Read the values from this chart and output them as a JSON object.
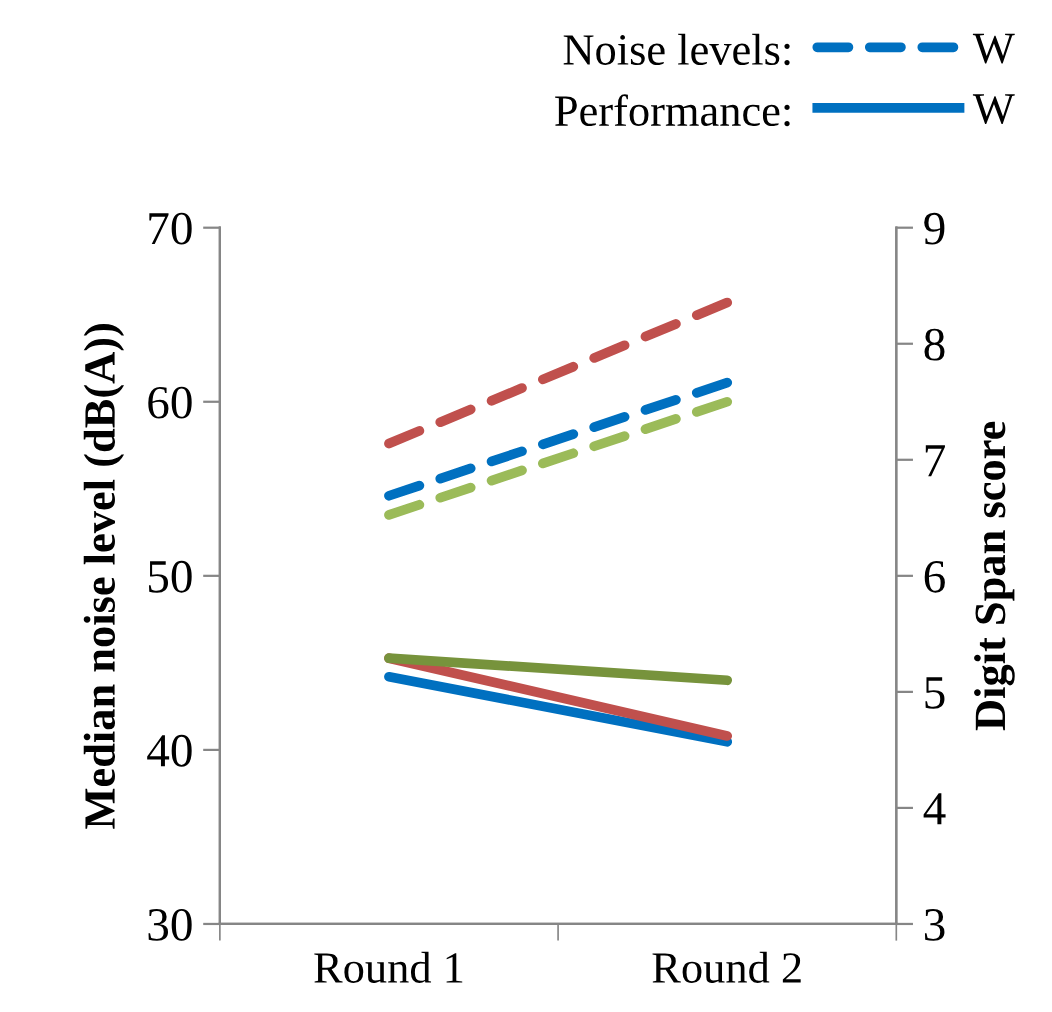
{
  "chart_data": {
    "type": "line",
    "categories": [
      "Round 1",
      "Round 2"
    ],
    "ylabel": "Median noise level (dB(A))",
    "y2label": "Digit Span score",
    "ylim": [
      30,
      70
    ],
    "yticks": [
      30,
      40,
      50,
      60,
      70
    ],
    "y2lim": [
      3,
      9
    ],
    "y2ticks": [
      3,
      4,
      5,
      6,
      7,
      8,
      9
    ],
    "annotations": [
      "Noise levels:",
      "Performance:"
    ],
    "legend": "top right",
    "grid": false,
    "series": [
      {
        "name": "W",
        "color": "#0070c0",
        "values": [
          54.6,
          61.1
        ],
        "line_style": "dashed",
        "axis": "y"
      },
      {
        "color": "#c0504d",
        "values": [
          57.6,
          65.7
        ],
        "line_style": "dashed",
        "axis": "y"
      },
      {
        "color": "#9bbb59",
        "values": [
          53.5,
          60.0
        ],
        "line_style": "dashed",
        "axis": "y"
      },
      {
        "name": "W",
        "color": "#0070c0",
        "values": [
          5.13,
          4.57
        ],
        "line_style": "solid",
        "axis": "y2"
      },
      {
        "color": "#c0504d",
        "values": [
          5.29,
          4.62
        ],
        "line_style": "solid",
        "axis": "y2"
      },
      {
        "color": "#77933c",
        "values": [
          5.29,
          5.1
        ],
        "line_style": "solid",
        "axis": "y2"
      }
    ]
  }
}
